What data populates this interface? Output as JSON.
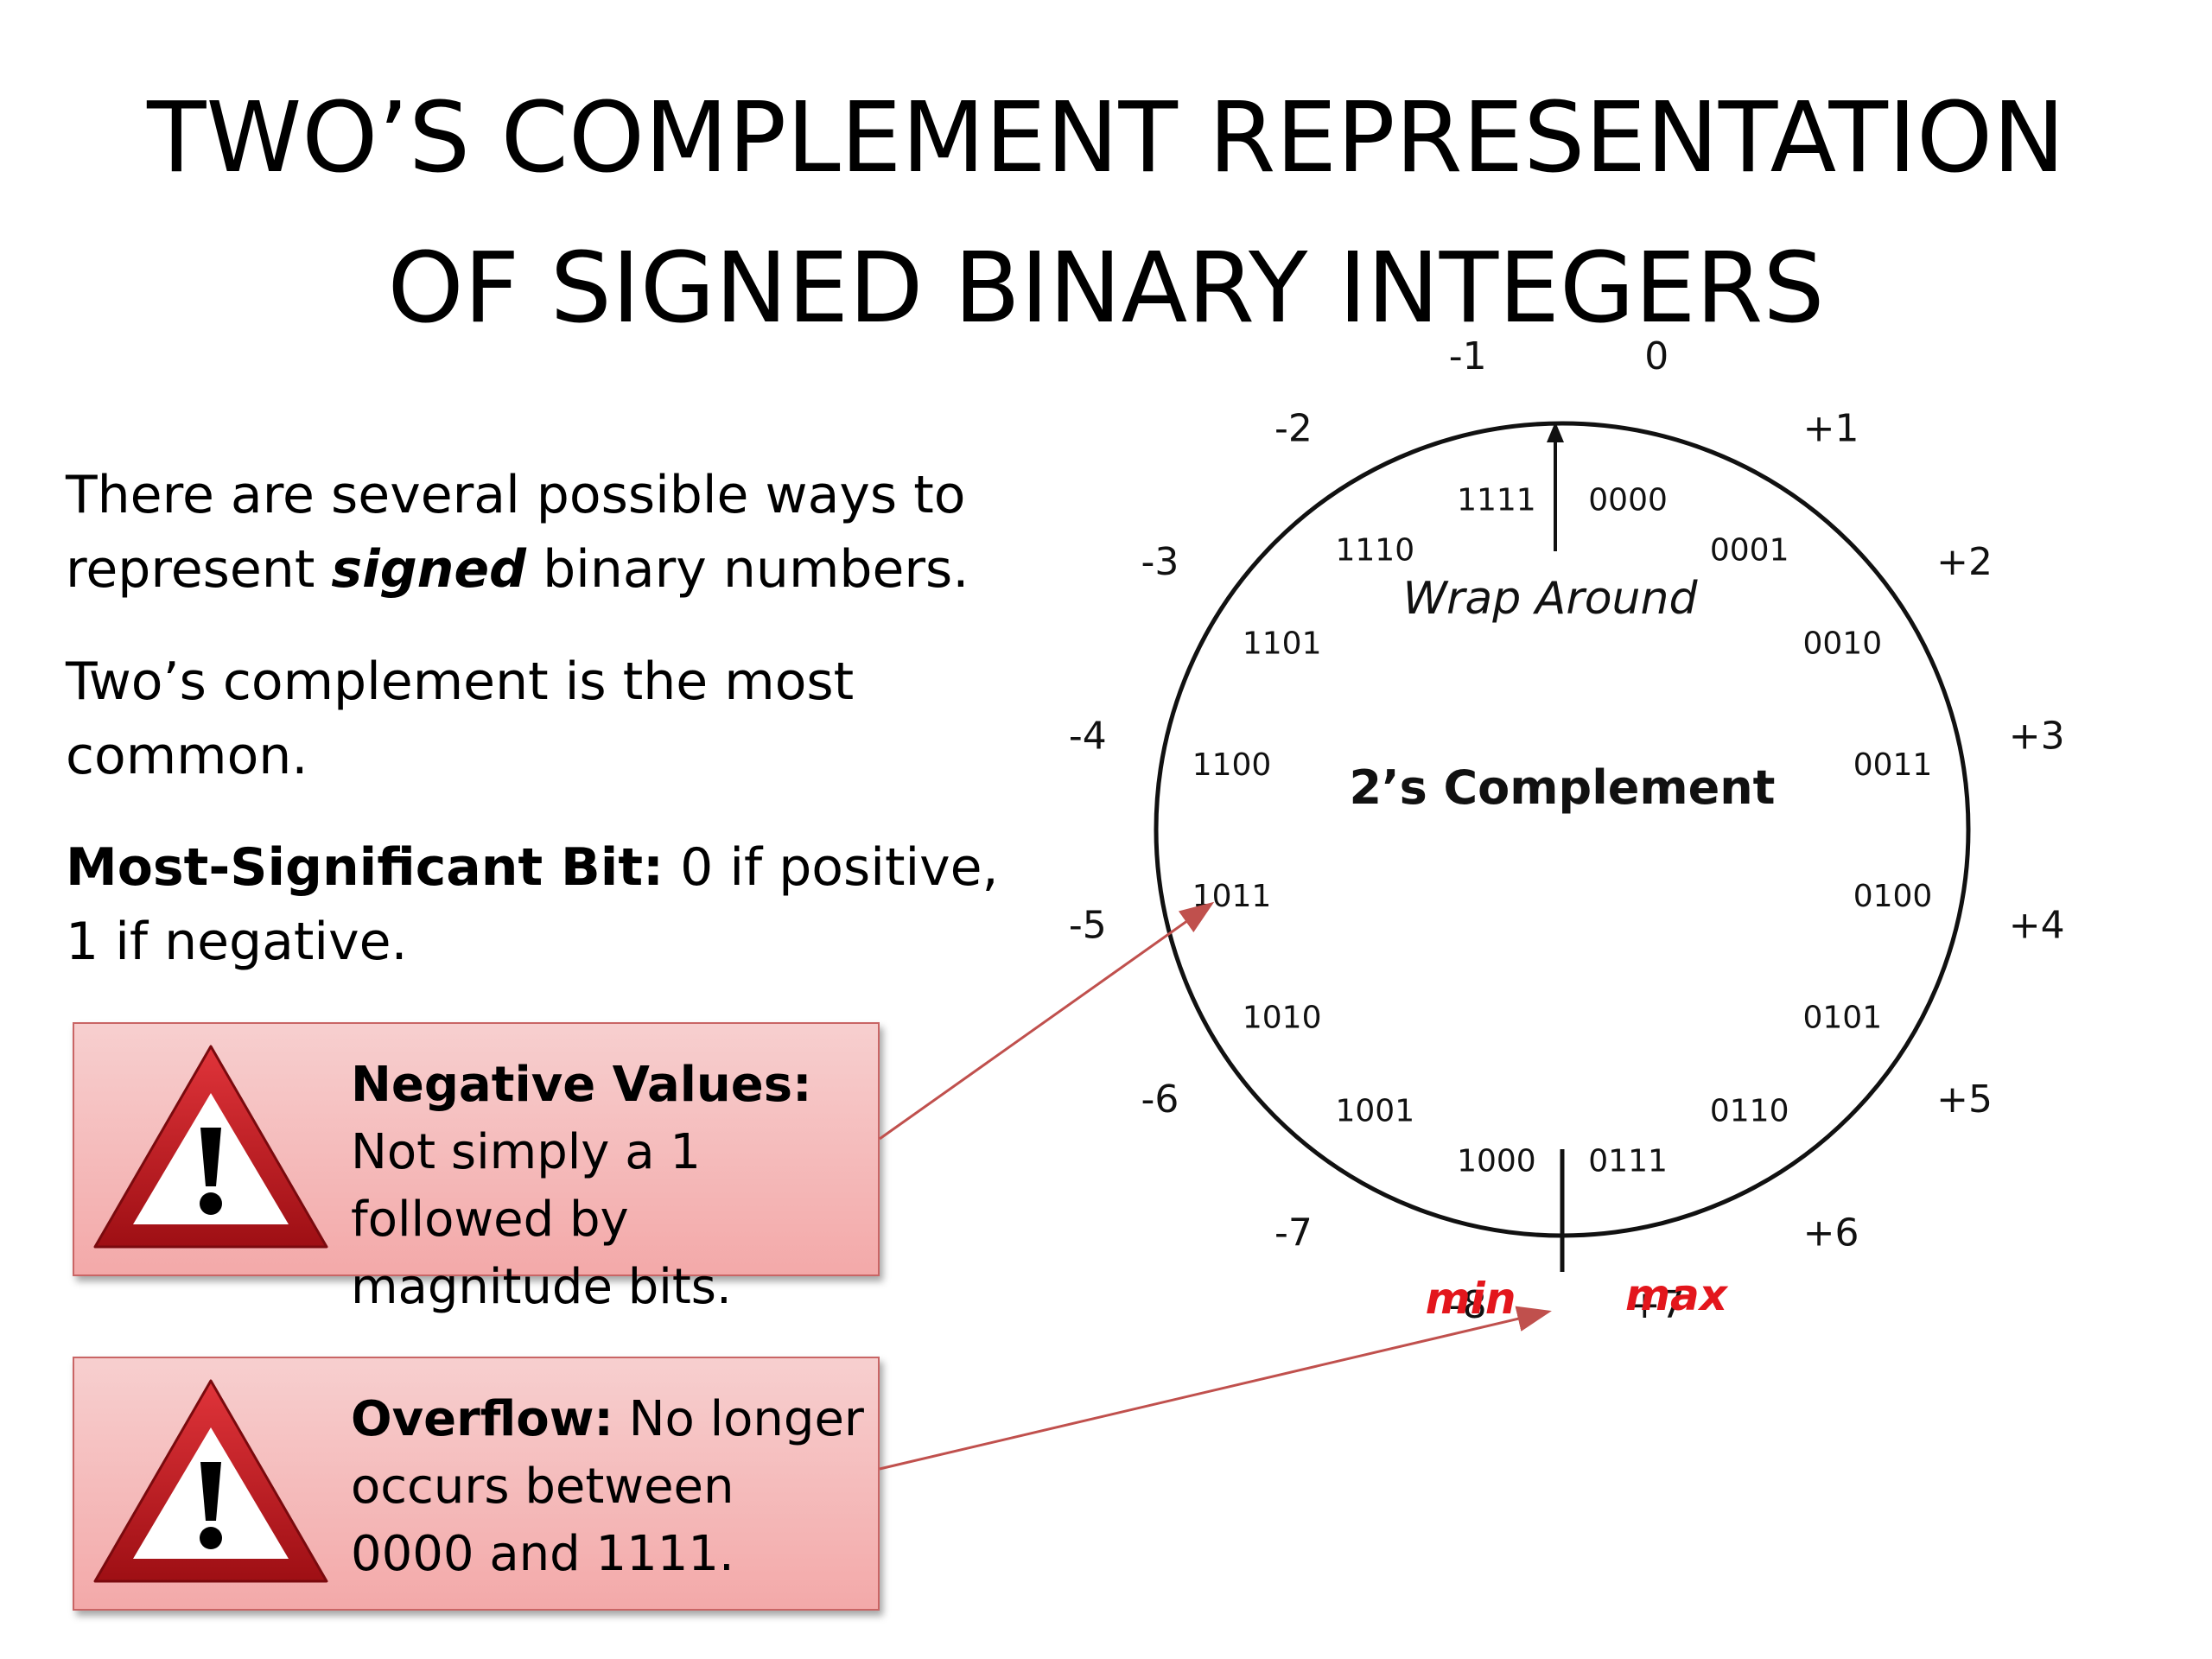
{
  "title": {
    "line1": "TWO’S COMPLEMENT REPRESENTATION",
    "line2": "OF SIGNED BINARY INTEGERS"
  },
  "intro": {
    "p1_pre": "There are several possible ways to represent ",
    "p1_em": "signed",
    "p1_post": " binary numbers.",
    "p2": "Two’s complement is the most common.",
    "p3_label": "Most-Significant Bit:",
    "p3_text": " 0 if positive, 1 if negative."
  },
  "warnings": [
    {
      "label": "Negative Values:",
      "text": " Not simply a 1 followed by magnitude bits."
    },
    {
      "label": "Overflow:",
      "text": " No longer occurs between 0000 and 1111."
    }
  ],
  "wheel": {
    "center_label": "2’s Complement",
    "wrap_label": "Wrap Around",
    "min_label": "min",
    "max_label": "max",
    "entries": [
      {
        "binary": "0000",
        "value": "0"
      },
      {
        "binary": "0001",
        "value": "+1"
      },
      {
        "binary": "0010",
        "value": "+2"
      },
      {
        "binary": "0011",
        "value": "+3"
      },
      {
        "binary": "0100",
        "value": "+4"
      },
      {
        "binary": "0101",
        "value": "+5"
      },
      {
        "binary": "0110",
        "value": "+6"
      },
      {
        "binary": "0111",
        "value": "+7"
      },
      {
        "binary": "1000",
        "value": "-8"
      },
      {
        "binary": "1001",
        "value": "-7"
      },
      {
        "binary": "1010",
        "value": "-6"
      },
      {
        "binary": "1011",
        "value": "-5"
      },
      {
        "binary": "1100",
        "value": "-4"
      },
      {
        "binary": "1101",
        "value": "-3"
      },
      {
        "binary": "1110",
        "value": "-2"
      },
      {
        "binary": "1111",
        "value": "-1"
      }
    ]
  },
  "colors": {
    "minmax": "#e3161c",
    "arrow": "#c0504d",
    "box_top": "#f7cfcf",
    "box_bottom": "#f3a9a9",
    "triangle": "#c8161d"
  }
}
